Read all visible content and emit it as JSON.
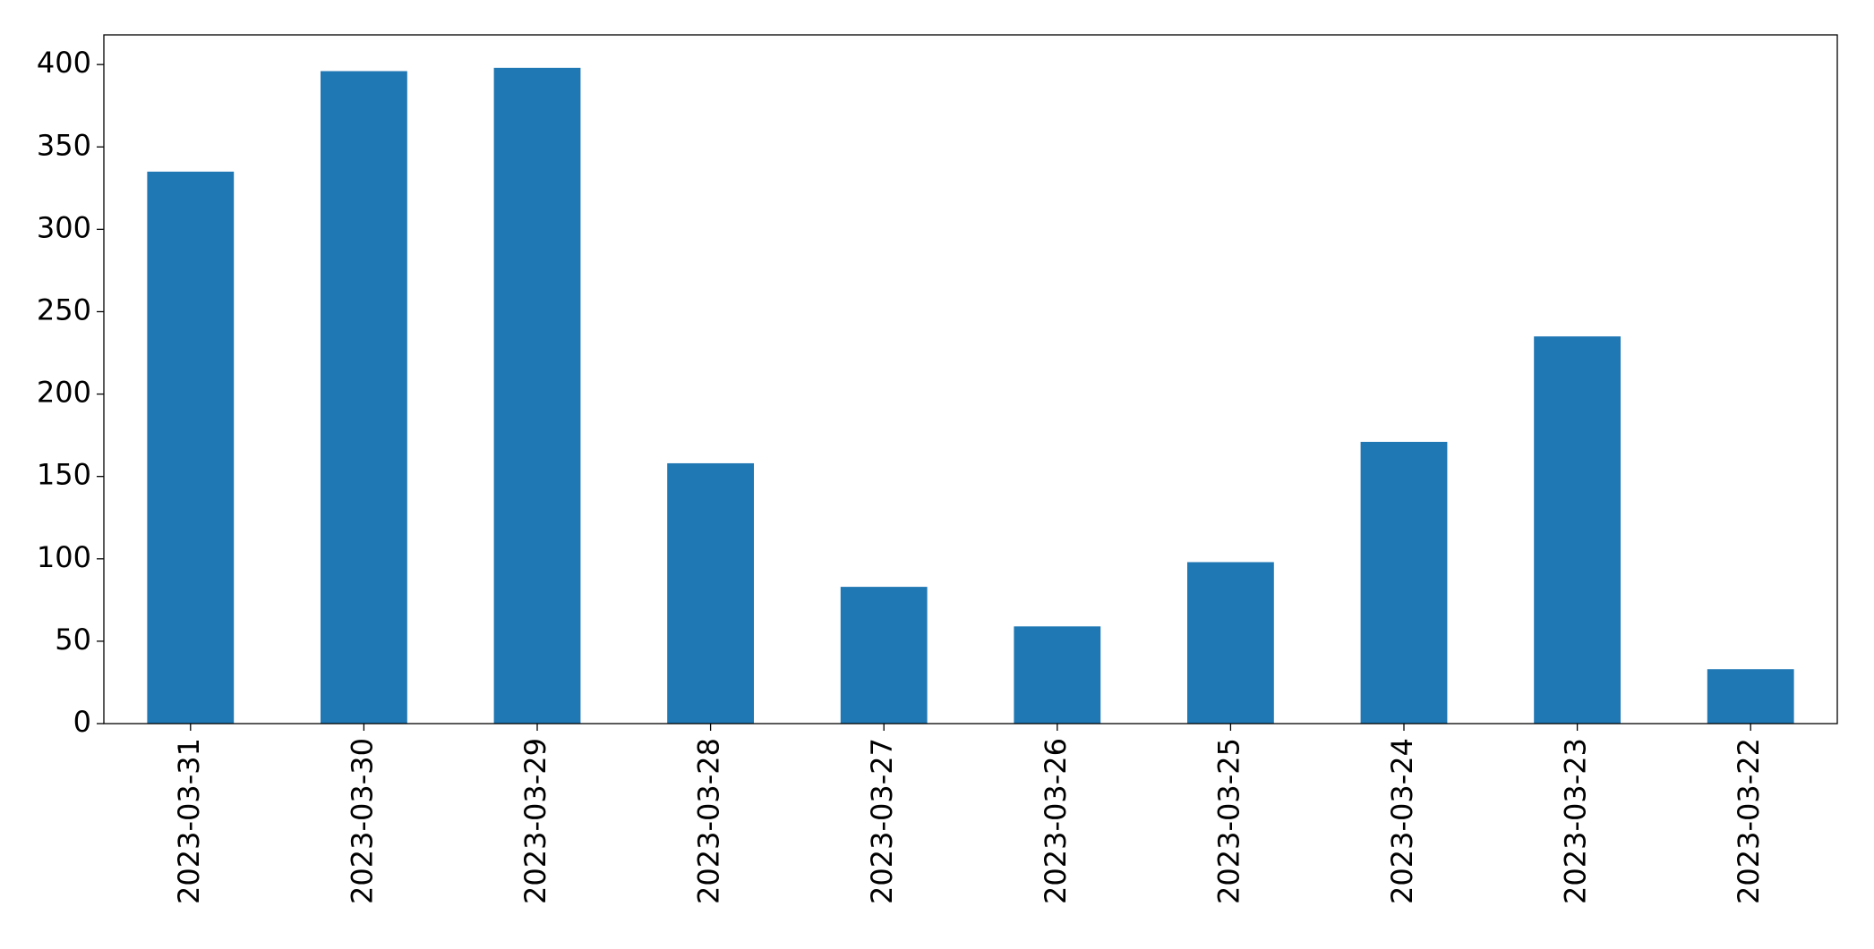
{
  "chart_data": {
    "type": "bar",
    "categories": [
      "2023-03-31",
      "2023-03-30",
      "2023-03-29",
      "2023-03-28",
      "2023-03-27",
      "2023-03-26",
      "2023-03-25",
      "2023-03-24",
      "2023-03-23",
      "2023-03-22"
    ],
    "values": [
      335,
      396,
      398,
      158,
      83,
      59,
      98,
      171,
      235,
      33
    ],
    "color": "#1f77b4",
    "ylim": [
      0,
      418
    ],
    "yticks": [
      0,
      50,
      100,
      150,
      200,
      250,
      300,
      350,
      400
    ],
    "grid": false
  }
}
